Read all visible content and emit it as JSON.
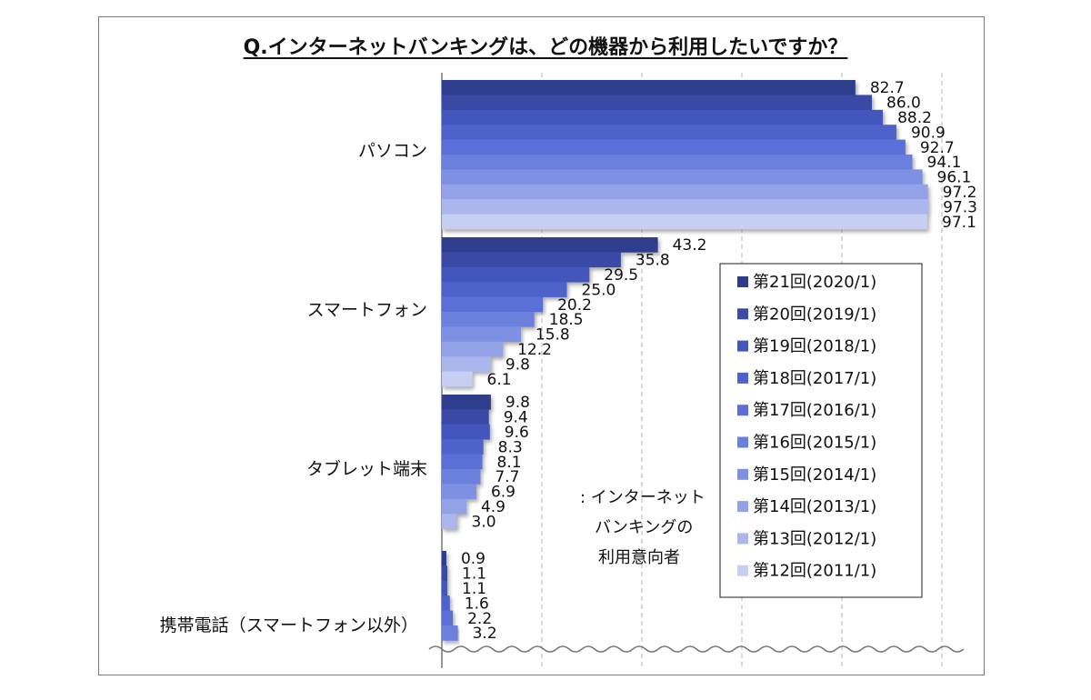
{
  "chart_data": {
    "type": "bar",
    "orientation": "horizontal",
    "title": "Q.インターネットバンキングは、どの機器から利用したいですか？",
    "categories": [
      "パソコン",
      "スマートフォン",
      "タブレット端末",
      "携帯電話（スマートフォン以外）"
    ],
    "series": [
      {
        "name": "第21回(2020/1)",
        "values": [
          82.7,
          43.2,
          9.8,
          0.9
        ]
      },
      {
        "name": "第20回(2019/1)",
        "values": [
          86.0,
          35.8,
          9.4,
          1.1
        ]
      },
      {
        "name": "第19回(2018/1)",
        "values": [
          88.2,
          29.5,
          9.6,
          1.1
        ]
      },
      {
        "name": "第18回(2017/1)",
        "values": [
          90.9,
          25.0,
          8.3,
          1.6
        ]
      },
      {
        "name": "第17回(2016/1)",
        "values": [
          92.7,
          20.2,
          8.1,
          2.2
        ]
      },
      {
        "name": "第16回(2015/1)",
        "values": [
          94.1,
          18.5,
          7.7,
          3.2
        ]
      },
      {
        "name": "第15回(2014/1)",
        "values": [
          96.1,
          15.8,
          6.9,
          null
        ]
      },
      {
        "name": "第14回(2013/1)",
        "values": [
          97.2,
          12.2,
          4.9,
          null
        ]
      },
      {
        "name": "第13回(2012/1)",
        "values": [
          97.3,
          9.8,
          3.0,
          null
        ]
      },
      {
        "name": "第12回(2011/1)",
        "values": [
          97.1,
          6.1,
          null,
          null
        ]
      }
    ],
    "value_labels": [
      [
        "82.7",
        "86.0",
        "88.2",
        "90.9",
        "92.7",
        "94.1",
        "96.1",
        "97.2",
        "97.3",
        "97.1"
      ],
      [
        "43.2",
        "35.8",
        "29.5",
        "25.0",
        "20.2",
        "18.5",
        "15.8",
        "12.2",
        "9.8",
        "6.1"
      ],
      [
        "9.8",
        "9.4",
        "9.6",
        "8.3",
        "8.1",
        "7.7",
        "6.9",
        "4.9",
        "3.0"
      ],
      [
        "0.9",
        "1.1",
        "1.1",
        "1.6",
        "2.2",
        "3.2"
      ]
    ],
    "xlim": [
      0,
      100
    ],
    "grid": true,
    "legend_position": "right",
    "series_colors": [
      "#2f3c8c",
      "#3a4aa6",
      "#4356bd",
      "#4d63cb",
      "#5a70d6",
      "#6a80dc",
      "#7d90e1",
      "#93a2e6",
      "#abb7ec",
      "#c6cef2"
    ]
  },
  "annotation": {
    "lines": [
      ": インターネット",
      "バンキングの",
      "利用意向者"
    ]
  }
}
